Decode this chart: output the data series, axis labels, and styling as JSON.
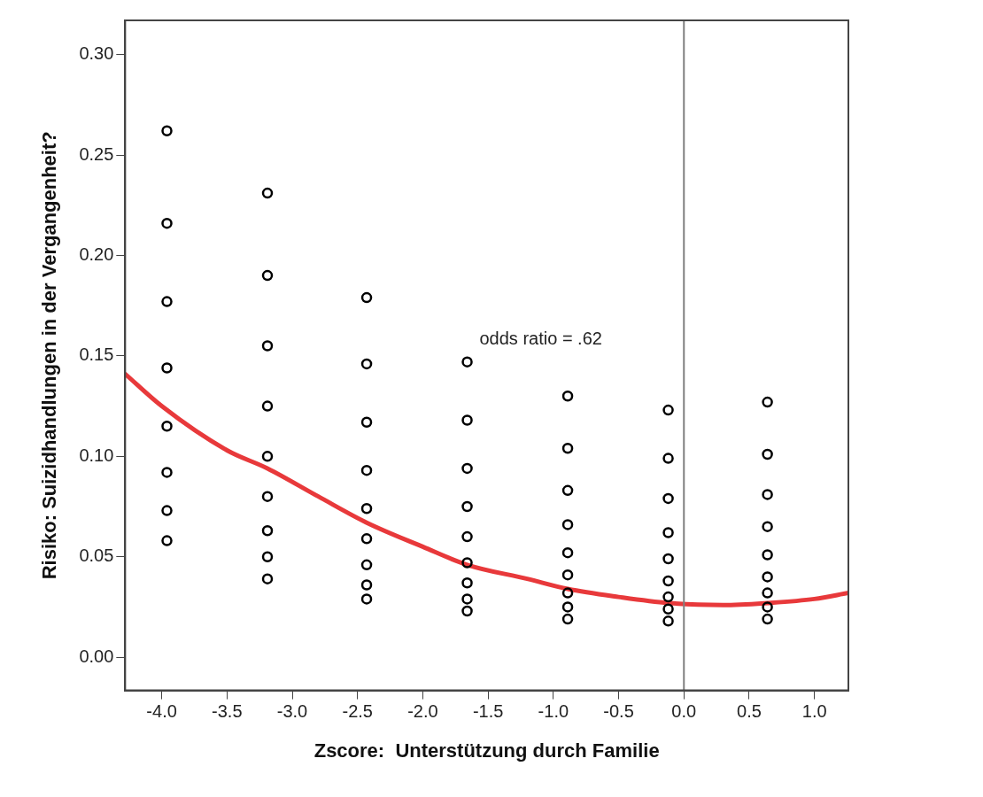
{
  "chart_data": {
    "type": "scatter",
    "xlabel": "Zscore:  Unterstützung durch Familie",
    "ylabel": "Risiko: Suizidhandlungen in der Vergangenheit?",
    "marker": "circle",
    "grid": false,
    "legend": false,
    "xlim": [
      -4.28,
      1.26
    ],
    "ylim": [
      -0.0165,
      0.317
    ],
    "xticks": [
      {
        "value": -4,
        "label": "-4.0"
      },
      {
        "value": -3.5,
        "label": "-3.5"
      },
      {
        "value": -3,
        "label": "-3.0"
      },
      {
        "value": -2.5,
        "label": "-2.5"
      },
      {
        "value": -2,
        "label": "-2.0"
      },
      {
        "value": -1.5,
        "label": "-1.5"
      },
      {
        "value": -1,
        "label": "-1.0"
      },
      {
        "value": -0.5,
        "label": "-0.5"
      },
      {
        "value": 0,
        "label": "0.0"
      },
      {
        "value": 0.5,
        "label": "0.5"
      },
      {
        "value": 1,
        "label": "1.0"
      }
    ],
    "yticks": [
      {
        "value": 0,
        "label": "0.00"
      },
      {
        "value": 0.05,
        "label": "0.05"
      },
      {
        "value": 0.1,
        "label": "0.10"
      },
      {
        "value": 0.15,
        "label": "0.15"
      },
      {
        "value": 0.2,
        "label": "0.20"
      },
      {
        "value": 0.25,
        "label": "0.25"
      },
      {
        "value": 0.3,
        "label": "0.30"
      }
    ],
    "ref_lines": [
      {
        "axis": "x",
        "value": 0,
        "color": "#808080"
      }
    ],
    "annotations": [
      "odds ratio = .62"
    ],
    "series": [
      {
        "color": "#000000",
        "x": [
          -3.96,
          -3.96,
          -3.96,
          -3.96,
          -3.96,
          -3.96,
          -3.96,
          -3.96,
          -3.19,
          -3.19,
          -3.19,
          -3.19,
          -3.19,
          -3.19,
          -3.19,
          -3.19,
          -3.19,
          -2.43,
          -2.43,
          -2.43,
          -2.43,
          -2.43,
          -2.43,
          -2.43,
          -2.43,
          -2.43,
          -1.66,
          -1.66,
          -1.66,
          -1.66,
          -1.66,
          -1.66,
          -1.66,
          -1.66,
          -1.66,
          -0.89,
          -0.89,
          -0.89,
          -0.89,
          -0.89,
          -0.89,
          -0.89,
          -0.89,
          -0.89,
          -0.12,
          -0.12,
          -0.12,
          -0.12,
          -0.12,
          -0.12,
          -0.12,
          -0.12,
          -0.12,
          0.64,
          0.64,
          0.64,
          0.64,
          0.64,
          0.64,
          0.64,
          0.64,
          0.64
        ],
        "values": [
          0.262,
          0.216,
          0.177,
          0.144,
          0.115,
          0.092,
          0.073,
          0.058,
          0.231,
          0.19,
          0.155,
          0.125,
          0.1,
          0.08,
          0.063,
          0.05,
          0.039,
          0.179,
          0.146,
          0.117,
          0.093,
          0.074,
          0.059,
          0.046,
          0.036,
          0.029,
          0.147,
          0.118,
          0.094,
          0.075,
          0.06,
          0.047,
          0.037,
          0.029,
          0.023,
          0.13,
          0.104,
          0.083,
          0.066,
          0.052,
          0.041,
          0.032,
          0.025,
          0.019,
          0.123,
          0.099,
          0.079,
          0.062,
          0.049,
          0.038,
          0.03,
          0.024,
          0.018,
          0.127,
          0.101,
          0.081,
          0.065,
          0.051,
          0.04,
          0.032,
          0.025,
          0.019
        ]
      },
      {
        "type": "line",
        "color": "#e8393b",
        "marker": "none",
        "x": [
          -4.28,
          -4.0,
          -3.5,
          -3.19,
          -2.8,
          -2.43,
          -2.0,
          -1.66,
          -1.2,
          -0.89,
          -0.5,
          -0.12,
          0.3,
          0.64,
          1.0,
          1.26
        ],
        "values": [
          0.141,
          0.125,
          0.103,
          0.094,
          0.08,
          0.067,
          0.055,
          0.046,
          0.039,
          0.034,
          0.03,
          0.027,
          0.026,
          0.027,
          0.029,
          0.032
        ]
      }
    ]
  }
}
